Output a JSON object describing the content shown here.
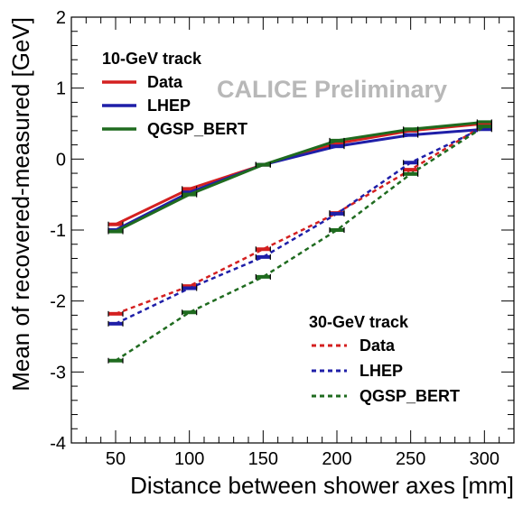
{
  "chart_data": {
    "type": "line",
    "xlabel": "Distance between shower axes [mm]",
    "ylabel": "Mean of recovered-measured [GeV]",
    "xlim": [
      20,
      320
    ],
    "ylim": [
      -4,
      2
    ],
    "xticks": [
      50,
      100,
      150,
      200,
      250,
      300
    ],
    "yticks": [
      -4,
      -3,
      -2,
      -1,
      0,
      1,
      2
    ],
    "watermark": "CALICE Preliminary",
    "grid": false,
    "groups": [
      {
        "title": "10-GeV track",
        "legend_position": "top-left",
        "line_style": "solid",
        "series": [
          {
            "name": "Data",
            "color": "#d42020",
            "x": [
              50,
              100,
              150,
              200,
              250,
              300
            ],
            "y": [
              -0.92,
              -0.42,
              -0.08,
              0.22,
              0.4,
              0.5
            ]
          },
          {
            "name": "LHEP",
            "color": "#1f1fa8",
            "x": [
              50,
              100,
              150,
              200,
              250,
              300
            ],
            "y": [
              -1.0,
              -0.47,
              -0.08,
              0.18,
              0.34,
              0.42
            ]
          },
          {
            "name": "QGSP_BERT",
            "color": "#1f6b1f",
            "x": [
              50,
              100,
              150,
              200,
              250,
              300
            ],
            "y": [
              -1.02,
              -0.5,
              -0.08,
              0.26,
              0.42,
              0.52
            ]
          }
        ]
      },
      {
        "title": "30-GeV track",
        "legend_position": "bottom-right",
        "line_style": "dashed",
        "series": [
          {
            "name": "Data",
            "color": "#d42020",
            "x": [
              50,
              100,
              150,
              200,
              250,
              300
            ],
            "y": [
              -2.18,
              -1.79,
              -1.27,
              -0.76,
              -0.15,
              0.48
            ]
          },
          {
            "name": "LHEP",
            "color": "#1f1fa8",
            "x": [
              50,
              100,
              150,
              200,
              250,
              300
            ],
            "y": [
              -2.32,
              -1.82,
              -1.38,
              -0.77,
              -0.05,
              0.45
            ]
          },
          {
            "name": "QGSP_BERT",
            "color": "#1f6b1f",
            "x": [
              50,
              100,
              150,
              200,
              250,
              300
            ],
            "y": [
              -2.84,
              -2.16,
              -1.66,
              -1.0,
              -0.21,
              0.46
            ]
          }
        ]
      }
    ]
  }
}
